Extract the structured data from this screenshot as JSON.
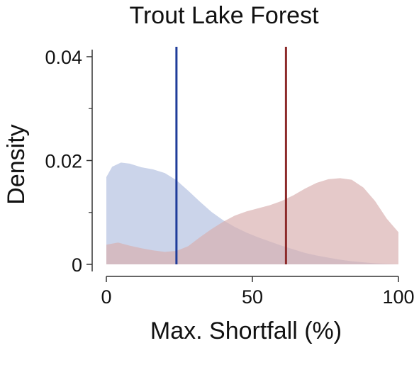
{
  "chart_data": {
    "type": "area",
    "title": "Trout Lake Forest",
    "xlabel": "Max. Shortfall (%)",
    "ylabel": "Density",
    "xlim": [
      0,
      100
    ],
    "ylim": [
      0,
      0.04
    ],
    "x_ticks": [
      0,
      50,
      100
    ],
    "x_tick_labels": [
      "0",
      "50",
      "100"
    ],
    "y_ticks": [
      0,
      0.02,
      0.04
    ],
    "y_tick_labels": [
      "0",
      "0.02",
      "0.04"
    ],
    "y_minor_ticks": [
      0.01,
      0.03
    ],
    "grid": false,
    "legend": "none",
    "series": [
      {
        "color": "#b3c0e0",
        "x": [
          0,
          2,
          5,
          8,
          12,
          16,
          20,
          24,
          28,
          32,
          36,
          40,
          44,
          48,
          52,
          56,
          60,
          64,
          68,
          72,
          76,
          80,
          84,
          88,
          92,
          96,
          100
        ],
        "y": [
          0.0168,
          0.0188,
          0.0196,
          0.0194,
          0.0187,
          0.0183,
          0.0176,
          0.0162,
          0.0142,
          0.0121,
          0.0101,
          0.0085,
          0.0072,
          0.0061,
          0.0052,
          0.0044,
          0.0036,
          0.0029,
          0.0022,
          0.0017,
          0.0013,
          0.0009,
          0.0006,
          0.0004,
          0.0002,
          0.0001,
          0.0
        ]
      },
      {
        "color": "#d8b0b0",
        "x": [
          0,
          4,
          8,
          12,
          16,
          20,
          24,
          28,
          32,
          36,
          40,
          44,
          48,
          52,
          56,
          60,
          64,
          68,
          72,
          76,
          80,
          84,
          88,
          92,
          96,
          100
        ],
        "y": [
          0.0038,
          0.0042,
          0.0036,
          0.0031,
          0.0027,
          0.0024,
          0.0026,
          0.0035,
          0.0052,
          0.0068,
          0.0082,
          0.0094,
          0.0102,
          0.0108,
          0.0114,
          0.0122,
          0.0133,
          0.0146,
          0.0157,
          0.0164,
          0.0166,
          0.0163,
          0.0148,
          0.0122,
          0.0088,
          0.0062
        ]
      }
    ],
    "vlines": [
      {
        "x": 24,
        "color": "#1f3c9a"
      },
      {
        "x": 61.5,
        "color": "#8c2a2a"
      }
    ]
  }
}
